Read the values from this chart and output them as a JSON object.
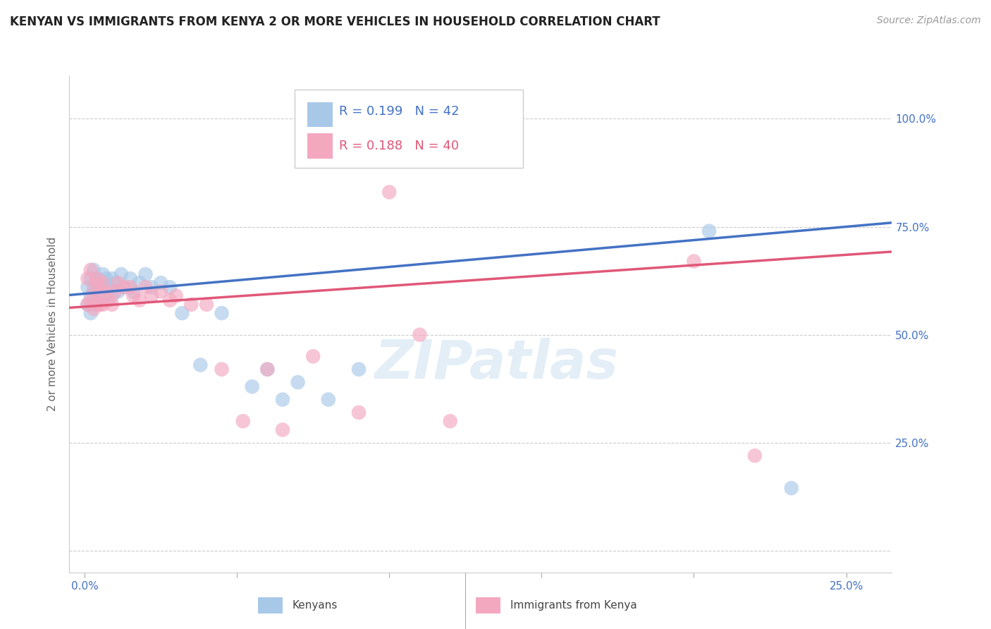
{
  "title": "KENYAN VS IMMIGRANTS FROM KENYA 2 OR MORE VEHICLES IN HOUSEHOLD CORRELATION CHART",
  "source": "Source: ZipAtlas.com",
  "ylabel": "2 or more Vehicles in Household",
  "kenyan_R": 0.199,
  "kenyan_N": 42,
  "immigrant_R": 0.188,
  "immigrant_N": 40,
  "kenyan_color": "#a8c8e8",
  "immigrant_color": "#f4a8c0",
  "kenyan_line_color": "#4472c4",
  "immigrant_line_color": "#e05878",
  "legend_label_kenyan": "Kenyans",
  "legend_label_immigrant": "Immigrants from Kenya",
  "watermark": "ZIPatlas",
  "kenyan_x": [
    0.001,
    0.001,
    0.002,
    0.002,
    0.003,
    0.003,
    0.003,
    0.004,
    0.004,
    0.004,
    0.005,
    0.005,
    0.006,
    0.006,
    0.007,
    0.007,
    0.008,
    0.009,
    0.01,
    0.011,
    0.012,
    0.013,
    0.014,
    0.015,
    0.016,
    0.017,
    0.018,
    0.02,
    0.022,
    0.025,
    0.028,
    0.03,
    0.033,
    0.038,
    0.042,
    0.05,
    0.055,
    0.06,
    0.065,
    0.07,
    0.205,
    0.23
  ],
  "kenyan_y": [
    0.6,
    0.57,
    0.62,
    0.58,
    0.65,
    0.6,
    0.55,
    0.63,
    0.58,
    0.6,
    0.62,
    0.57,
    0.64,
    0.59,
    0.63,
    0.6,
    0.62,
    0.61,
    0.6,
    0.59,
    0.63,
    0.61,
    0.62,
    0.61,
    0.6,
    0.62,
    0.61,
    0.63,
    0.6,
    0.62,
    0.61,
    0.6,
    0.55,
    0.43,
    0.4,
    0.55,
    0.38,
    0.42,
    0.35,
    0.38,
    0.74,
    0.145
  ],
  "immigrant_x": [
    0.001,
    0.001,
    0.002,
    0.002,
    0.003,
    0.003,
    0.004,
    0.004,
    0.005,
    0.005,
    0.006,
    0.006,
    0.007,
    0.008,
    0.009,
    0.01,
    0.012,
    0.013,
    0.015,
    0.016,
    0.017,
    0.018,
    0.02,
    0.022,
    0.025,
    0.028,
    0.03,
    0.035,
    0.038,
    0.045,
    0.05,
    0.058,
    0.065,
    0.075,
    0.09,
    0.1,
    0.11,
    0.12,
    0.2,
    0.22
  ],
  "immigrant_y": [
    0.62,
    0.57,
    0.65,
    0.58,
    0.6,
    0.55,
    0.63,
    0.57,
    0.61,
    0.58,
    0.62,
    0.57,
    0.6,
    0.59,
    0.57,
    0.6,
    0.59,
    0.61,
    0.6,
    0.59,
    0.62,
    0.58,
    0.61,
    0.59,
    0.6,
    0.58,
    0.59,
    0.57,
    0.45,
    0.42,
    0.3,
    0.42,
    0.28,
    0.45,
    0.32,
    0.83,
    0.5,
    0.3,
    0.67,
    0.22
  ],
  "xlim": [
    -0.005,
    0.265
  ],
  "ylim": [
    -0.05,
    1.1
  ],
  "x_tick_positions": [
    0.0,
    0.05,
    0.1,
    0.15,
    0.2,
    0.25
  ],
  "x_tick_labels": [
    "0.0%",
    "",
    "",
    "",
    "",
    "25.0%"
  ],
  "y_tick_positions": [
    0.0,
    0.25,
    0.5,
    0.75,
    1.0
  ],
  "y_tick_labels": [
    "",
    "25.0%",
    "50.0%",
    "75.0%",
    "100.0%"
  ],
  "background_color": "#ffffff",
  "grid_color": "#cccccc",
  "title_fontsize": 12,
  "axis_label_fontsize": 11,
  "tick_fontsize": 11,
  "source_fontsize": 10
}
